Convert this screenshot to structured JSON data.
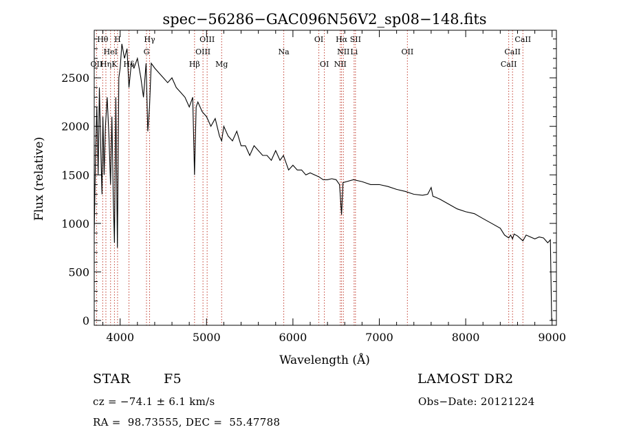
{
  "chart_data": {
    "type": "line",
    "title": "spec−56286−GAC096N56V2_sp08−148.fits",
    "xlabel": "Wavelength (Å)",
    "ylabel": "Flux (relative)",
    "xlim": [
      3700,
      9050
    ],
    "ylim": [
      -50,
      2990
    ],
    "xticks": [
      4000,
      5000,
      6000,
      7000,
      8000,
      9000
    ],
    "yticks": [
      0,
      500,
      1000,
      1500,
      2000,
      2500
    ],
    "grid": false,
    "series": [
      {
        "x": [
          3700,
          3715,
          3730,
          3745,
          3760,
          3775,
          3790,
          3800,
          3815,
          3830,
          3850,
          3870,
          3889,
          3905,
          3920,
          3934,
          3950,
          3968,
          3985,
          4000,
          4020,
          4050,
          4080,
          4102,
          4130,
          4160,
          4200,
          4240,
          4270,
          4300,
          4320,
          4340,
          4360,
          4400,
          4450,
          4500,
          4550,
          4600,
          4650,
          4700,
          4750,
          4800,
          4840,
          4861,
          4880,
          4900,
          4950,
          5000,
          5050,
          5100,
          5150,
          5175,
          5200,
          5250,
          5300,
          5350,
          5400,
          5450,
          5500,
          5550,
          5600,
          5650,
          5700,
          5750,
          5800,
          5850,
          5890,
          5950,
          6000,
          6050,
          6100,
          6150,
          6200,
          6250,
          6300,
          6350,
          6400,
          6450,
          6500,
          6540,
          6563,
          6580,
          6620,
          6700,
          6800,
          6900,
          7000,
          7100,
          7200,
          7300,
          7400,
          7500,
          7560,
          7600,
          7620,
          7650,
          7700,
          7800,
          7900,
          8000,
          8100,
          8200,
          8300,
          8400,
          8450,
          8498,
          8520,
          8542,
          8560,
          8600,
          8662,
          8700,
          8750,
          8800,
          8850,
          8900,
          8950,
          8980,
          8995,
          9000
        ],
        "y": [
          900,
          1700,
          2200,
          1500,
          2400,
          1800,
          1300,
          2100,
          1500,
          2000,
          2300,
          1900,
          1400,
          2100,
          1300,
          800,
          2300,
          750,
          2500,
          2600,
          2850,
          2700,
          2800,
          2400,
          2650,
          2600,
          2700,
          2500,
          2300,
          2650,
          1950,
          2200,
          2650,
          2600,
          2550,
          2500,
          2450,
          2500,
          2400,
          2350,
          2300,
          2200,
          2300,
          1500,
          2200,
          2250,
          2150,
          2100,
          2000,
          2080,
          1900,
          1850,
          2000,
          1900,
          1850,
          1950,
          1800,
          1800,
          1700,
          1800,
          1750,
          1700,
          1700,
          1650,
          1750,
          1650,
          1700,
          1550,
          1600,
          1550,
          1550,
          1500,
          1520,
          1500,
          1480,
          1450,
          1450,
          1460,
          1450,
          1400,
          1090,
          1420,
          1430,
          1450,
          1430,
          1400,
          1400,
          1380,
          1350,
          1330,
          1300,
          1290,
          1300,
          1370,
          1280,
          1270,
          1250,
          1200,
          1150,
          1120,
          1100,
          1050,
          1000,
          950,
          880,
          850,
          880,
          840,
          890,
          870,
          820,
          880,
          860,
          840,
          860,
          850,
          800,
          830,
          0,
          0
        ]
      }
    ],
    "annotations": [
      {
        "label": "Hθ",
        "x": 3798,
        "row": 0
      },
      {
        "label": "H",
        "x": 3970,
        "row": 0
      },
      {
        "label": "HeI",
        "x": 3889,
        "row": 1
      },
      {
        "label": "OII",
        "x": 3727,
        "row": 2
      },
      {
        "label": "Hη",
        "x": 3835,
        "row": 2
      },
      {
        "label": "K",
        "x": 3934,
        "row": 2
      },
      {
        "label": "Hδ",
        "x": 4102,
        "row": 2
      },
      {
        "label": "Hγ",
        "x": 4341,
        "row": 0
      },
      {
        "label": "G",
        "x": 4305,
        "row": 1
      },
      {
        "label": "Hβ",
        "x": 4861,
        "row": 2
      },
      {
        "label": "OIII",
        "x": 5007,
        "row": 0
      },
      {
        "label": "OIII",
        "x": 4959,
        "row": 1
      },
      {
        "label": "Mg",
        "x": 5175,
        "row": 2
      },
      {
        "label": "Na",
        "x": 5894,
        "row": 1
      },
      {
        "label": "OI",
        "x": 6300,
        "row": 0
      },
      {
        "label": "OI",
        "x": 6364,
        "row": 2
      },
      {
        "label": "Hα",
        "x": 6563,
        "row": 0
      },
      {
        "label": "SII",
        "x": 6724,
        "row": 0
      },
      {
        "label": "NII",
        "x": 6584,
        "row": 1
      },
      {
        "label": "NII",
        "x": 6548,
        "row": 2
      },
      {
        "label": "Li",
        "x": 6708,
        "row": 1
      },
      {
        "label": "OII",
        "x": 7325,
        "row": 1
      },
      {
        "label": "CaII",
        "x": 8662,
        "row": 0
      },
      {
        "label": "CaII",
        "x": 8542,
        "row": 1
      },
      {
        "label": "CaII",
        "x": 8498,
        "row": 2
      }
    ],
    "annotation_lines": [
      3727,
      3798,
      3835,
      3889,
      3934,
      3970,
      4102,
      4305,
      4341,
      4861,
      4959,
      5007,
      5175,
      5894,
      6300,
      6364,
      6548,
      6563,
      6584,
      6708,
      6724,
      7325,
      8498,
      8542,
      8662
    ],
    "colors": {
      "line": "#000000",
      "marker": "#c0392b"
    }
  },
  "info": {
    "object_type": "STAR",
    "subclass": "F5",
    "survey": "LAMOST DR2",
    "cz": "cz = −74.1 ± 6.1 km/s",
    "obs_date": "Obs−Date: 20121224",
    "coords": "RA =  98.73555, DEC =  55.47788"
  }
}
